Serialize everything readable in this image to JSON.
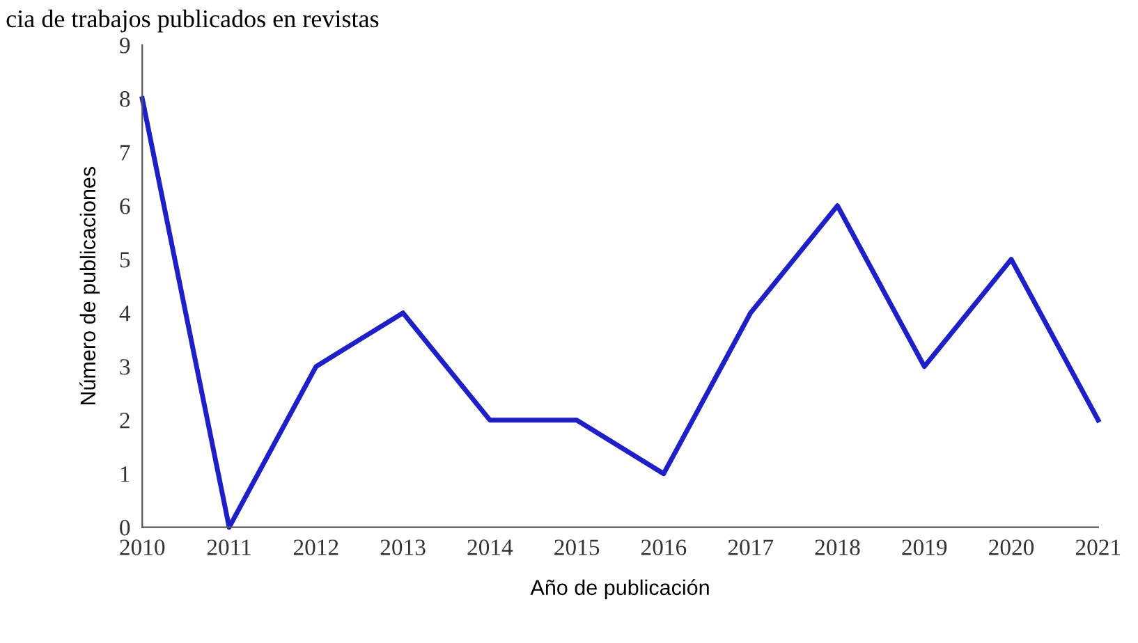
{
  "chart_data": {
    "type": "line",
    "title": "cia de trabajos publicados en revistas",
    "xlabel": "Año de publicación",
    "ylabel": "Número de publicaciones",
    "x": [
      2010,
      2011,
      2012,
      2013,
      2014,
      2015,
      2016,
      2017,
      2018,
      2019,
      2020,
      2021
    ],
    "series": [
      {
        "color": "#1f1fc8",
        "values": [
          8,
          0,
          3,
          4,
          2,
          2,
          1,
          4,
          6,
          3,
          5,
          2
        ]
      }
    ],
    "xlim": [
      2010,
      2021
    ],
    "xticks": [
      2010,
      2011,
      2012,
      2013,
      2014,
      2015,
      2016,
      2017,
      2018,
      2019,
      2020,
      2021
    ],
    "ylim": [
      0,
      9
    ],
    "yticks": [
      0,
      1,
      2,
      3,
      4,
      5,
      6,
      7,
      8,
      9
    ],
    "grid": false,
    "legend": false,
    "marker": "none",
    "line_style": "solid"
  }
}
